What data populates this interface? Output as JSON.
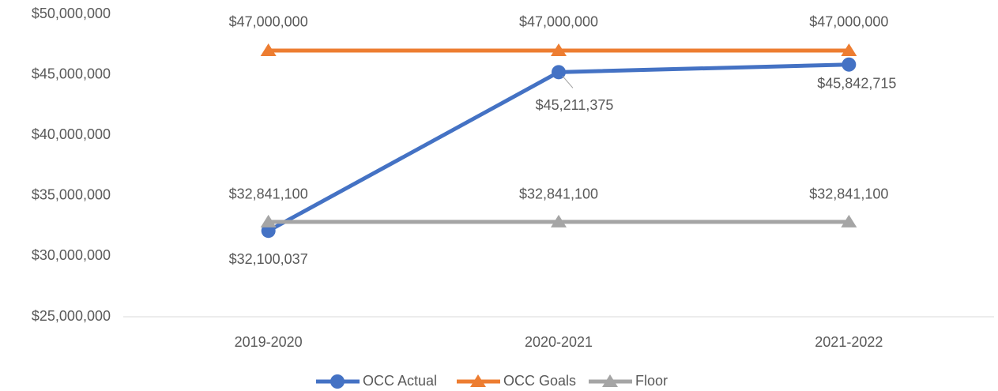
{
  "chart_data": {
    "type": "line",
    "categories": [
      "2019-2020",
      "2020-2021",
      "2021-2022"
    ],
    "series": [
      {
        "name": "OCC Actual",
        "color": "#4472c4",
        "marker": "circle",
        "values": [
          32100037,
          45211375,
          45842715
        ],
        "value_labels": [
          "$32,100,037",
          "$45,211,375",
          "$45,842,715"
        ]
      },
      {
        "name": "OCC Goals",
        "color": "#ed7d31",
        "marker": "triangle",
        "values": [
          47000000,
          47000000,
          47000000
        ],
        "value_labels": [
          "$47,000,000",
          "$47,000,000",
          "$47,000,000"
        ]
      },
      {
        "name": "Floor",
        "color": "#a5a5a5",
        "marker": "triangle",
        "values": [
          32841100,
          32841100,
          32841100
        ],
        "value_labels": [
          "$32,841,100",
          "$32,841,100",
          "$32,841,100"
        ]
      }
    ],
    "ylim": [
      25000000,
      50000000
    ],
    "yticks": [
      {
        "value": 25000000,
        "label": "$25,000,000"
      },
      {
        "value": 30000000,
        "label": "$30,000,000"
      },
      {
        "value": 35000000,
        "label": "$35,000,000"
      },
      {
        "value": 40000000,
        "label": "$40,000,000"
      },
      {
        "value": 45000000,
        "label": "$45,000,000"
      },
      {
        "value": 50000000,
        "label": "$50,000,000"
      }
    ],
    "grid": false,
    "legend": "bottom"
  }
}
